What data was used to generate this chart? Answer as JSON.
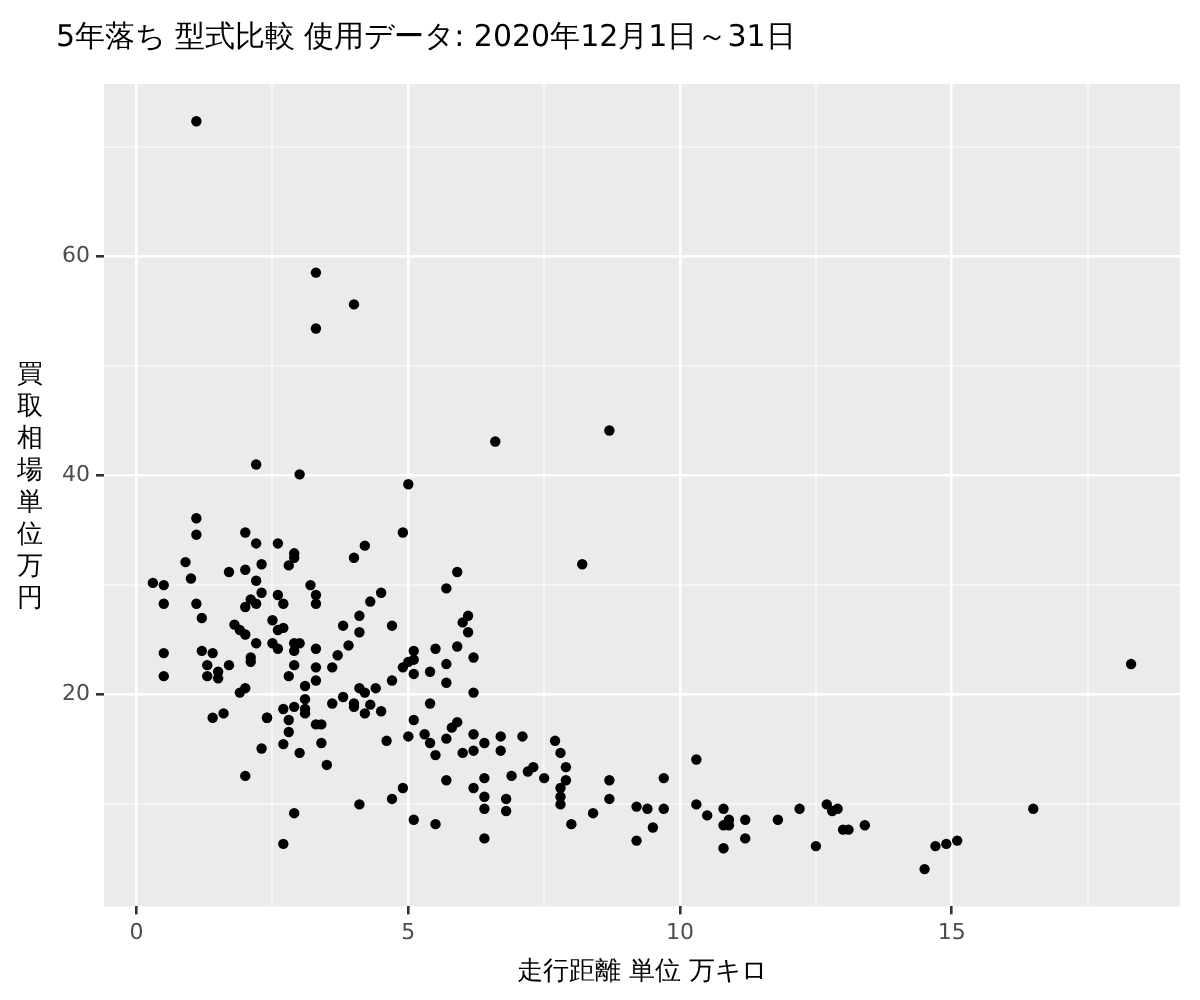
{
  "chart_data": {
    "type": "scatter",
    "title": "5年落ち 型式比較 使用データ: 2020年12月1日～31日",
    "xlabel": "走行距離 単位 万キロ",
    "ylabel": "買取相場単位万円",
    "xlim": [
      -0.6,
      19.2
    ],
    "ylim": [
      0.7,
      75.7
    ],
    "xticks": [
      0,
      {
        "value": 2.5,
        "label": null
      },
      5,
      {
        "value": 7.5,
        "label": null
      },
      10,
      {
        "value": 12.5,
        "label": null
      },
      15,
      {
        "value": 17.5,
        "label": null
      }
    ],
    "yticks": [
      {
        "value": 10,
        "label": null
      },
      20,
      {
        "value": 30,
        "label": null
      },
      40,
      {
        "value": 50,
        "label": null
      },
      60,
      {
        "value": 70,
        "label": null
      }
    ],
    "grid": true,
    "marker": "circle",
    "legend": false,
    "series": [
      {
        "color": "#000000",
        "x": [
          1.1,
          3.3,
          3.3,
          4.0,
          3.0,
          2.2,
          5.0,
          6.6,
          8.7,
          18.3,
          9.7,
          10.3,
          9.4,
          9.7,
          9.5,
          10.3,
          10.5,
          10.8,
          10.8,
          10.9,
          10.9,
          11.2,
          10.8,
          11.2,
          11.8,
          12.2,
          12.5,
          12.7,
          12.9,
          12.8,
          13.0,
          13.1,
          13.4,
          14.5,
          14.7,
          14.9,
          15.1,
          16.5,
          5.9,
          5.7,
          8.2,
          6.0,
          6.1,
          6.1,
          5.1,
          5.1,
          5.5,
          5.9,
          6.2,
          5.7,
          5.4,
          5.1,
          5.7,
          6.2,
          5.4,
          5.1,
          5.9,
          5.8,
          5.3,
          5.7,
          5.4,
          6.2,
          6.7,
          7.1,
          7.7,
          5.5,
          6.0,
          6.2,
          6.4,
          6.7,
          7.8,
          5.7,
          6.2,
          6.4,
          6.4,
          6.9,
          7.2,
          7.3,
          7.5,
          7.9,
          7.9,
          7.8,
          7.8,
          7.8,
          6.8,
          6.8,
          6.4,
          8.7,
          8.7,
          8.4,
          8.0,
          9.2,
          9.2,
          6.4,
          5.1,
          5.5,
          4.9,
          2.6,
          2.9,
          2.9,
          2.8,
          4.2,
          4.0,
          3.2,
          2.6,
          2.7,
          3.3,
          3.3,
          4.5,
          4.3,
          4.1,
          4.1,
          3.8,
          4.7,
          2.5,
          2.6,
          2.7,
          2.5,
          2.6,
          2.9,
          3.0,
          2.9,
          3.3,
          3.9,
          3.7,
          2.9,
          2.8,
          3.3,
          3.3,
          3.6,
          3.1,
          3.1,
          3.1,
          3.1,
          2.7,
          2.9,
          2.8,
          2.8,
          2.7,
          3.3,
          3.4,
          3.0,
          3.4,
          3.5,
          3.6,
          3.8,
          4.0,
          4.0,
          4.1,
          4.2,
          4.2,
          4.3,
          4.4,
          4.5,
          4.7,
          4.9,
          5.0,
          4.6,
          5.0,
          4.9,
          4.7,
          4.1,
          2.9,
          2.7,
          2.4,
          1.1,
          1.1,
          2.0,
          2.2,
          0.9,
          1.0,
          0.3,
          0.5,
          1.7,
          2.0,
          2.3,
          2.2,
          0.5,
          1.1,
          1.2,
          2.3,
          2.0,
          2.2,
          2.1,
          1.8,
          1.9,
          2.0,
          2.2,
          2.1,
          2.1,
          0.5,
          0.5,
          1.2,
          1.4,
          1.3,
          1.3,
          1.5,
          1.5,
          1.7,
          1.9,
          2.0,
          1.4,
          1.6,
          2.4,
          2.3,
          2.0
        ],
        "values": [
          72.3,
          58.5,
          53.4,
          55.6,
          40.1,
          41.0,
          39.2,
          43.1,
          44.1,
          22.8,
          12.4,
          14.1,
          9.6,
          9.6,
          7.9,
          10.0,
          9.0,
          9.6,
          8.1,
          8.6,
          8.1,
          8.6,
          6.0,
          6.9,
          8.6,
          9.6,
          6.2,
          10.0,
          9.6,
          9.4,
          7.7,
          7.7,
          8.1,
          4.1,
          6.2,
          6.4,
          6.7,
          9.6,
          31.2,
          29.7,
          31.9,
          26.6,
          27.2,
          25.7,
          24.0,
          23.2,
          24.2,
          24.4,
          23.4,
          22.8,
          22.1,
          21.9,
          21.1,
          20.2,
          19.2,
          17.7,
          17.5,
          17.0,
          16.4,
          16.0,
          15.6,
          16.4,
          16.2,
          16.2,
          15.8,
          14.5,
          14.7,
          14.9,
          15.6,
          14.9,
          14.7,
          12.2,
          11.5,
          10.7,
          12.4,
          12.6,
          13.0,
          13.4,
          12.4,
          13.4,
          12.2,
          11.5,
          10.7,
          10.0,
          10.5,
          9.4,
          9.6,
          12.2,
          10.5,
          9.2,
          8.2,
          9.8,
          6.7,
          6.9,
          8.6,
          8.2,
          34.8,
          33.8,
          32.9,
          32.5,
          31.8,
          33.6,
          32.5,
          30.0,
          29.1,
          28.3,
          29.1,
          28.3,
          29.3,
          28.5,
          27.2,
          25.7,
          26.3,
          26.3,
          26.8,
          25.9,
          26.1,
          24.7,
          24.2,
          24.7,
          24.7,
          24.0,
          24.2,
          24.5,
          23.6,
          22.7,
          21.7,
          22.5,
          21.3,
          22.5,
          20.8,
          19.6,
          18.7,
          18.3,
          18.7,
          18.9,
          17.7,
          16.6,
          15.5,
          17.3,
          17.3,
          14.7,
          15.6,
          13.6,
          19.2,
          19.8,
          19.2,
          18.9,
          20.6,
          20.2,
          18.3,
          19.1,
          20.6,
          18.5,
          21.3,
          22.5,
          23.0,
          15.8,
          16.2,
          11.5,
          10.5,
          10.0,
          9.2,
          6.4,
          17.9,
          36.1,
          34.6,
          34.8,
          33.8,
          32.1,
          30.6,
          30.2,
          30.0,
          31.2,
          31.4,
          31.9,
          30.4,
          28.3,
          28.3,
          27.0,
          29.3,
          28.0,
          28.3,
          28.7,
          26.4,
          25.9,
          25.5,
          24.7,
          23.4,
          23.0,
          23.8,
          21.7,
          24.0,
          23.8,
          22.7,
          21.7,
          22.1,
          21.5,
          22.7,
          20.2,
          20.6,
          17.9,
          18.3,
          17.9,
          15.1,
          12.6
        ]
      }
    ]
  }
}
